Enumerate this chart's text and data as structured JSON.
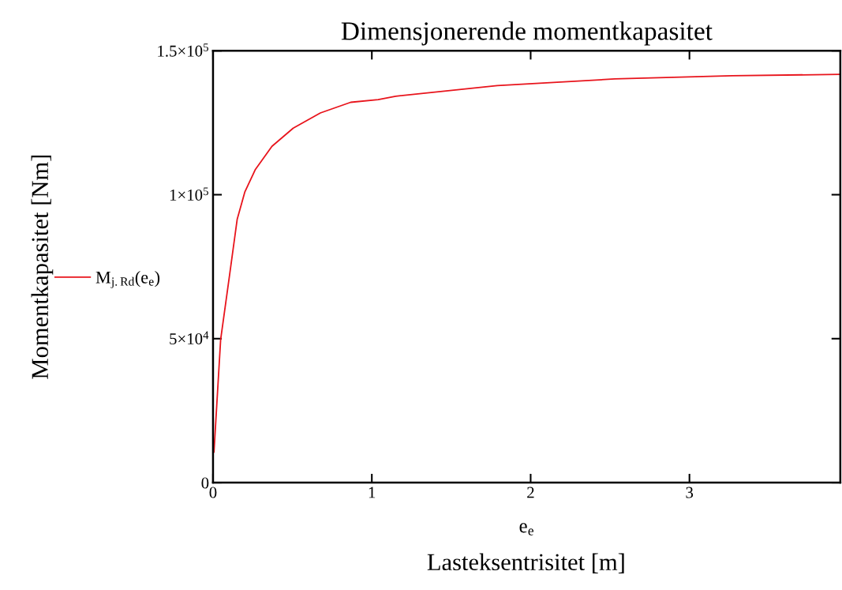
{
  "chart_data": {
    "type": "line",
    "title": "Dimensjonerende momentkapasitet",
    "xlabel": "e$_{e}$",
    "ylabel": "Momentkapasitet [Nm]",
    "annotations": [
      "Lasteksentrisitet [m]"
    ],
    "series": [
      {
        "name": "M$_{j.Rd}$(e$_{e}$)",
        "color": "#e8141c",
        "x": [
          0.006,
          0.048,
          0.105,
          0.152,
          0.2,
          0.267,
          0.371,
          0.505,
          0.676,
          0.867,
          1.04,
          1.15,
          1.79,
          2.53,
          3.27,
          3.95
        ],
        "values": [
          10600,
          49700,
          72400,
          91400,
          100900,
          108800,
          116800,
          123100,
          128400,
          132100,
          133000,
          134200,
          137900,
          140200,
          141300,
          141800
        ]
      }
    ],
    "xlim": [
      0,
      3.95
    ],
    "xticks": [
      0,
      1,
      2,
      3
    ],
    "ylim": [
      0,
      150000
    ],
    "yticks": [
      {
        "value": 0,
        "label": "0"
      },
      {
        "value": 50000,
        "label": "5×10$^{4}$"
      },
      {
        "value": 100000,
        "label": "1×10$^{5}$"
      },
      {
        "value": 150000,
        "label": "1.5×10$^{5}$"
      }
    ],
    "grid": false,
    "legend": "left",
    "marker": "none",
    "line_style": "solid"
  }
}
